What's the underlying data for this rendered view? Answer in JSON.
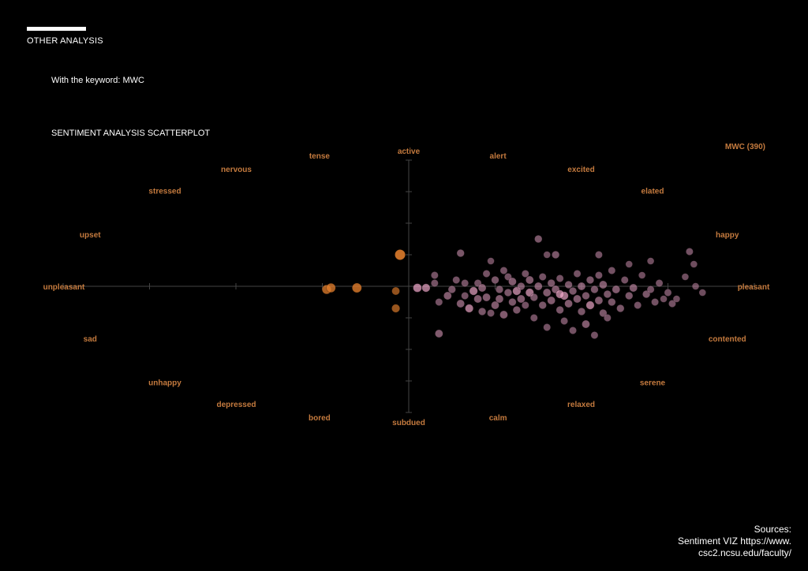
{
  "header": {
    "section_label": "OTHER ANALYSIS",
    "keyword_line": "With the keyword: MWC",
    "chart_title": "SENTIMENT ANALYSIS SCATTERPLOT"
  },
  "sources": {
    "line1": "Sources:",
    "line2": "Sentiment VIZ https://www.",
    "line3": "csc2.ncsu.edu/faculty/"
  },
  "colors": {
    "background": "#000000",
    "text": "#ffffff",
    "axis": "#444444",
    "mood_label": "#c47a3e",
    "point_negative": "#e07d2c",
    "point_positive": "#c48aa8",
    "point_positive_light": "#f2a9cc"
  },
  "chart_data": {
    "type": "scatter",
    "title": "SENTIMENT ANALYSIS SCATTERPLOT",
    "xlabel": "",
    "ylabel": "",
    "xlim": [
      1,
      9
    ],
    "ylim": [
      1,
      9
    ],
    "grid": false,
    "legend": "top-right",
    "legend_text": "MWC (390)",
    "mood_labels": {
      "top": "active",
      "bottom": "subdued",
      "left": "unpleasant",
      "right": "pleasant",
      "upper_left": [
        "tense",
        "nervous",
        "stressed",
        "upset"
      ],
      "upper_right": [
        "alert",
        "excited",
        "elated",
        "happy"
      ],
      "lower_left": [
        "sad",
        "unhappy",
        "depressed",
        "bored"
      ],
      "lower_right": [
        "contented",
        "serene",
        "relaxed",
        "calm"
      ]
    },
    "series": [
      {
        "name": "MWC (390)",
        "points": [
          [
            4.05,
            4.9,
            0.7
          ],
          [
            4.1,
            4.95,
            0.7
          ],
          [
            4.4,
            4.95,
            0.75
          ],
          [
            4.85,
            4.85,
            0.5
          ],
          [
            4.85,
            4.3,
            0.55
          ],
          [
            4.9,
            6.0,
            0.9
          ],
          [
            5.1,
            4.95,
            0.6
          ],
          [
            5.2,
            4.95,
            0.55
          ],
          [
            5.3,
            5.1,
            0.4
          ],
          [
            5.3,
            5.35,
            0.4
          ],
          [
            5.35,
            4.5,
            0.4
          ],
          [
            5.35,
            3.5,
            0.5
          ],
          [
            5.45,
            4.7,
            0.5
          ],
          [
            5.5,
            4.9,
            0.45
          ],
          [
            5.55,
            5.2,
            0.4
          ],
          [
            5.6,
            6.05,
            0.45
          ],
          [
            5.6,
            4.45,
            0.5
          ],
          [
            5.65,
            4.7,
            0.4
          ],
          [
            5.65,
            5.1,
            0.4
          ],
          [
            5.7,
            4.3,
            0.55
          ],
          [
            5.75,
            4.85,
            0.55
          ],
          [
            5.8,
            5.1,
            0.4
          ],
          [
            5.8,
            4.6,
            0.5
          ],
          [
            5.85,
            4.2,
            0.45
          ],
          [
            5.85,
            4.95,
            0.5
          ],
          [
            5.9,
            5.4,
            0.4
          ],
          [
            5.9,
            4.65,
            0.5
          ],
          [
            5.95,
            5.8,
            0.35
          ],
          [
            6.0,
            4.4,
            0.5
          ],
          [
            6.0,
            5.2,
            0.45
          ],
          [
            6.05,
            4.9,
            0.45
          ],
          [
            6.05,
            4.6,
            0.5
          ],
          [
            6.1,
            4.1,
            0.5
          ],
          [
            6.1,
            5.5,
            0.4
          ],
          [
            6.15,
            4.8,
            0.45
          ],
          [
            6.15,
            5.3,
            0.4
          ],
          [
            6.2,
            4.5,
            0.45
          ],
          [
            6.2,
            5.15,
            0.5
          ],
          [
            6.25,
            4.85,
            0.55
          ],
          [
            6.25,
            4.25,
            0.45
          ],
          [
            6.3,
            5.0,
            0.45
          ],
          [
            6.3,
            4.6,
            0.5
          ],
          [
            6.35,
            5.4,
            0.4
          ],
          [
            6.35,
            4.4,
            0.4
          ],
          [
            6.4,
            4.8,
            0.55
          ],
          [
            6.4,
            5.2,
            0.5
          ],
          [
            6.45,
            4.0,
            0.4
          ],
          [
            6.45,
            4.65,
            0.45
          ],
          [
            6.5,
            6.5,
            0.45
          ],
          [
            6.5,
            5.0,
            0.5
          ],
          [
            6.55,
            4.4,
            0.45
          ],
          [
            6.55,
            5.3,
            0.4
          ],
          [
            6.6,
            4.8,
            0.5
          ],
          [
            6.6,
            3.7,
            0.4
          ],
          [
            6.65,
            5.1,
            0.45
          ],
          [
            6.65,
            4.55,
            0.5
          ],
          [
            6.7,
            6.0,
            0.45
          ],
          [
            6.7,
            4.9,
            0.5
          ],
          [
            6.75,
            4.25,
            0.45
          ],
          [
            6.75,
            5.25,
            0.4
          ],
          [
            6.8,
            4.7,
            0.55
          ],
          [
            6.8,
            3.9,
            0.4
          ],
          [
            6.85,
            5.05,
            0.45
          ],
          [
            6.85,
            4.45,
            0.5
          ],
          [
            6.9,
            4.85,
            0.45
          ],
          [
            6.9,
            3.6,
            0.4
          ],
          [
            6.95,
            5.4,
            0.4
          ],
          [
            6.95,
            4.6,
            0.5
          ],
          [
            7.0,
            4.2,
            0.45
          ],
          [
            7.0,
            5.0,
            0.5
          ],
          [
            7.05,
            4.7,
            0.45
          ],
          [
            7.05,
            3.8,
            0.5
          ],
          [
            7.1,
            5.2,
            0.45
          ],
          [
            7.1,
            4.4,
            0.55
          ],
          [
            7.15,
            4.9,
            0.45
          ],
          [
            7.15,
            3.45,
            0.4
          ],
          [
            7.2,
            5.35,
            0.4
          ],
          [
            7.2,
            4.55,
            0.5
          ],
          [
            7.25,
            4.15,
            0.45
          ],
          [
            7.25,
            5.05,
            0.5
          ],
          [
            7.3,
            4.75,
            0.45
          ],
          [
            7.3,
            4.0,
            0.4
          ],
          [
            7.35,
            5.5,
            0.4
          ],
          [
            7.35,
            4.5,
            0.45
          ],
          [
            7.4,
            4.9,
            0.5
          ],
          [
            7.45,
            4.3,
            0.45
          ],
          [
            7.5,
            5.2,
            0.4
          ],
          [
            7.55,
            4.7,
            0.45
          ],
          [
            7.6,
            4.95,
            0.5
          ],
          [
            7.65,
            4.4,
            0.4
          ],
          [
            7.7,
            5.35,
            0.35
          ],
          [
            7.75,
            4.75,
            0.45
          ],
          [
            7.8,
            4.9,
            0.4
          ],
          [
            7.85,
            4.5,
            0.4
          ],
          [
            7.9,
            5.1,
            0.4
          ],
          [
            7.95,
            4.6,
            0.35
          ],
          [
            8.0,
            4.8,
            0.4
          ],
          [
            8.05,
            4.45,
            0.4
          ],
          [
            8.1,
            4.6,
            0.35
          ],
          [
            8.2,
            5.3,
            0.35
          ],
          [
            8.25,
            6.1,
            0.4
          ],
          [
            8.3,
            5.7,
            0.35
          ],
          [
            8.32,
            5.0,
            0.35
          ],
          [
            8.4,
            4.8,
            0.35
          ],
          [
            7.8,
            5.8,
            0.35
          ],
          [
            7.2,
            6.0,
            0.4
          ],
          [
            6.6,
            6.0,
            0.35
          ],
          [
            7.55,
            5.7,
            0.35
          ],
          [
            5.95,
            4.15,
            0.4
          ],
          [
            6.75,
            4.75,
            0.55
          ]
        ]
      }
    ]
  }
}
